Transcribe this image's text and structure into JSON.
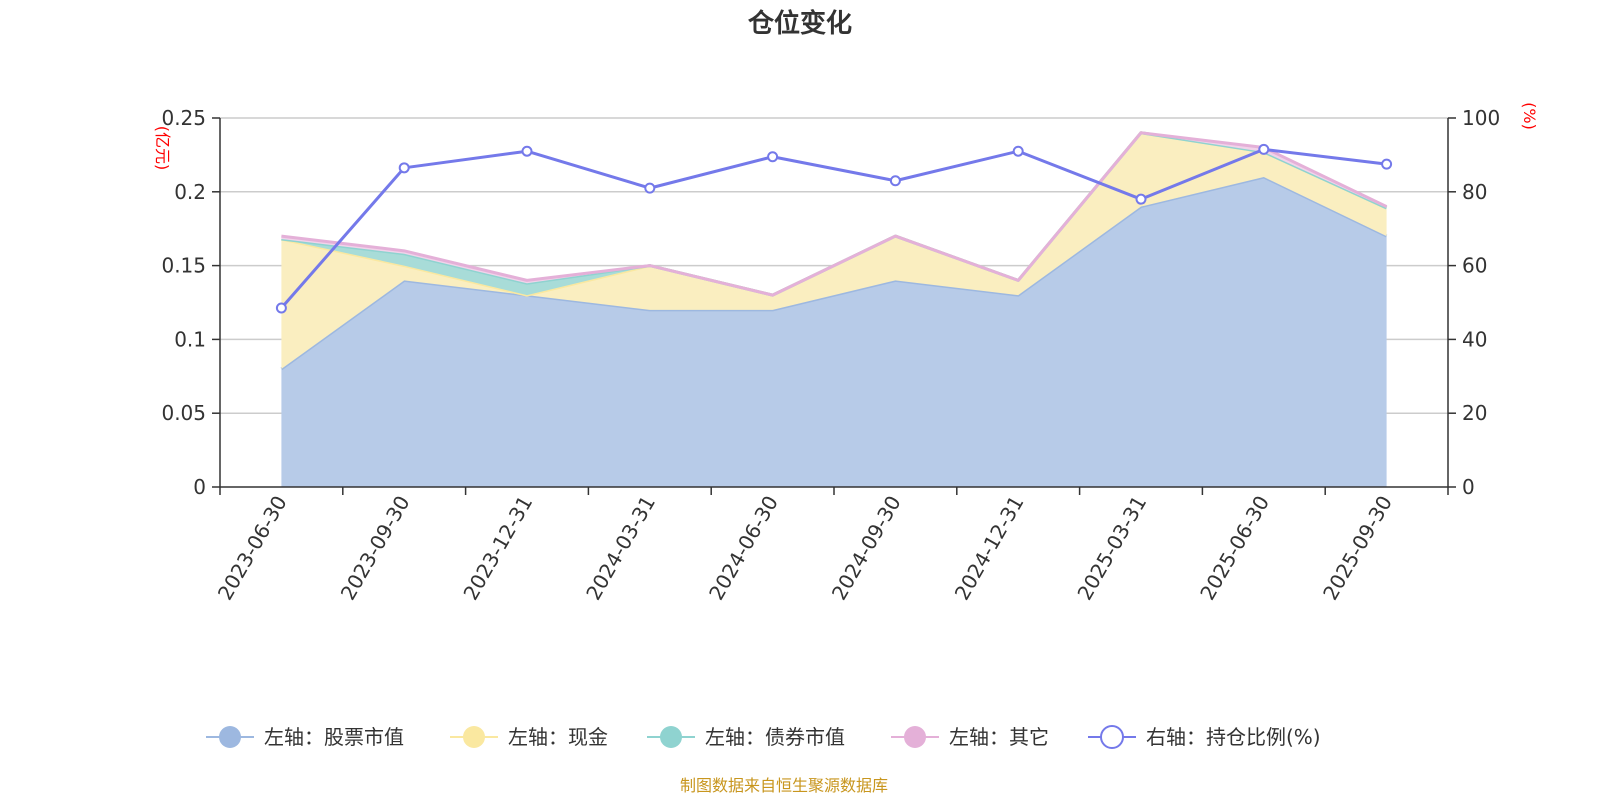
{
  "chart_data": {
    "type": "area",
    "title": "仓位变化",
    "categories": [
      "2023-06-30",
      "2023-09-30",
      "2023-12-31",
      "2024-03-31",
      "2024-06-30",
      "2024-09-30",
      "2024-12-31",
      "2025-03-31",
      "2025-06-30",
      "2025-09-30"
    ],
    "left_axis": {
      "unit": "(亿元)",
      "min": 0,
      "max": 0.25,
      "ticks": [
        "0",
        "0.05",
        "0.1",
        "0.15",
        "0.2",
        "0.25"
      ]
    },
    "right_axis": {
      "unit": "(%)",
      "min": 0,
      "max": 100,
      "ticks": [
        "0",
        "20",
        "40",
        "60",
        "80",
        "100"
      ]
    },
    "stacked_series": [
      {
        "name": "左轴：股票市值",
        "color": "#9db8e0",
        "fill": "#b7cbe8",
        "values": [
          0.08,
          0.14,
          0.13,
          0.12,
          0.12,
          0.14,
          0.13,
          0.19,
          0.21,
          0.17
        ]
      },
      {
        "name": "左轴：现金",
        "color": "#fae8a0",
        "fill": "#faeec0",
        "values": [
          0.088,
          0.01,
          0.0,
          0.03,
          0.01,
          0.03,
          0.01,
          0.05,
          0.017,
          0.019
        ]
      },
      {
        "name": "左轴：债券市值",
        "color": "#8fd3d0",
        "fill": "#a8dcd8",
        "values": [
          0,
          0.008,
          0.008,
          0,
          0,
          0,
          0,
          0,
          0,
          0
        ]
      },
      {
        "name": "左轴：其它",
        "color": "#e4b0d8",
        "fill": "#f1d3ea",
        "values": [
          0.002,
          0.002,
          0.002,
          0,
          0,
          0,
          0,
          0,
          0.003,
          0.001
        ]
      }
    ],
    "line_series": {
      "name": "右轴：持仓比例(%)",
      "color": "#7479ea",
      "values": [
        48.5,
        86.5,
        91,
        81,
        89.5,
        83,
        91,
        78,
        91.5,
        87.5
      ]
    },
    "source": "制图数据来自恒生聚源数据库"
  }
}
